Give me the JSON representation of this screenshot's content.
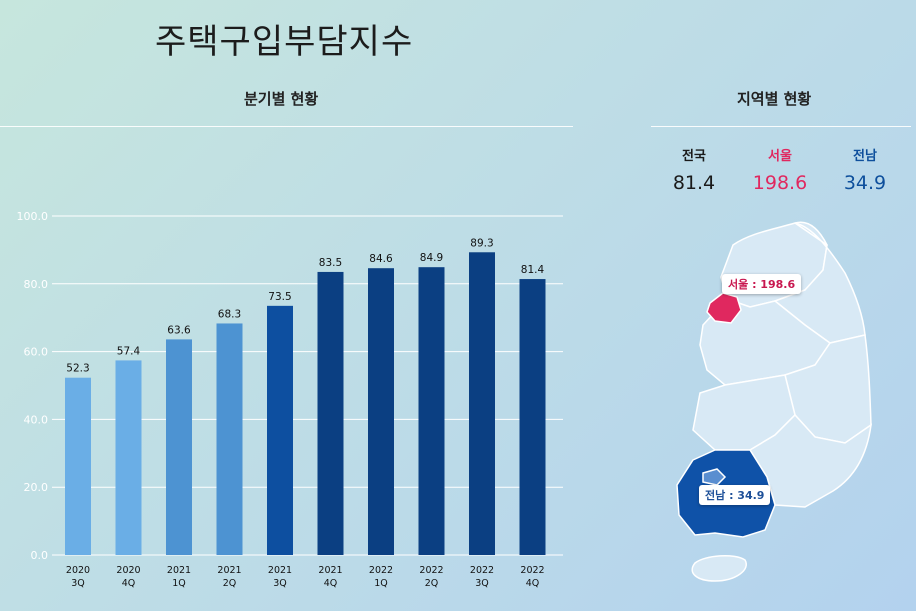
{
  "title": "주택구입부담지수",
  "quarterly_section": {
    "title": "분기별 현황"
  },
  "regional_section": {
    "title": "지역별 현황",
    "stats": [
      {
        "label": "전국",
        "value": "81.4",
        "color": "#1a1a1a"
      },
      {
        "label": "서울",
        "value": "198.6",
        "color": "#e0285f"
      },
      {
        "label": "전남",
        "value": "34.9",
        "color": "#0e4f9c"
      }
    ],
    "map": {
      "callouts": [
        {
          "text": "서울 : 198.6",
          "color": "#c8174f"
        },
        {
          "text": "전남 : 34.9",
          "color": "#1d4f98"
        }
      ],
      "region_colors": {
        "seoul": "#e0285f",
        "jeonnam": "#0f52a8",
        "default": "#d8e9f5"
      }
    }
  },
  "chart_data": {
    "type": "bar",
    "categories": [
      [
        "2020",
        "3Q"
      ],
      [
        "2020",
        "4Q"
      ],
      [
        "2021",
        "1Q"
      ],
      [
        "2021",
        "2Q"
      ],
      [
        "2021",
        "3Q"
      ],
      [
        "2021",
        "4Q"
      ],
      [
        "2022",
        "1Q"
      ],
      [
        "2022",
        "2Q"
      ],
      [
        "2022",
        "3Q"
      ],
      [
        "2022",
        "4Q"
      ]
    ],
    "values": [
      52.3,
      57.4,
      63.6,
      68.3,
      73.5,
      83.5,
      84.6,
      84.9,
      89.3,
      81.4
    ],
    "value_labels": [
      "52.3",
      "57.4",
      "63.6",
      "68.3",
      "73.5",
      "83.5",
      "84.6",
      "84.9",
      "89.3",
      "81.4"
    ],
    "bar_colors": [
      "#6aaee6",
      "#6aaee6",
      "#4d93d2",
      "#4d93d2",
      "#0d4fa0",
      "#0b3f82",
      "#0b3f82",
      "#0b3f82",
      "#0b3f82",
      "#0b3f82"
    ],
    "yticks": [
      0,
      20,
      40,
      60,
      80,
      100
    ],
    "ytick_labels": [
      "0.0",
      "20.0",
      "40.0",
      "60.0",
      "80.0",
      "100.0"
    ],
    "ylim": [
      0,
      100
    ],
    "grid": true
  }
}
